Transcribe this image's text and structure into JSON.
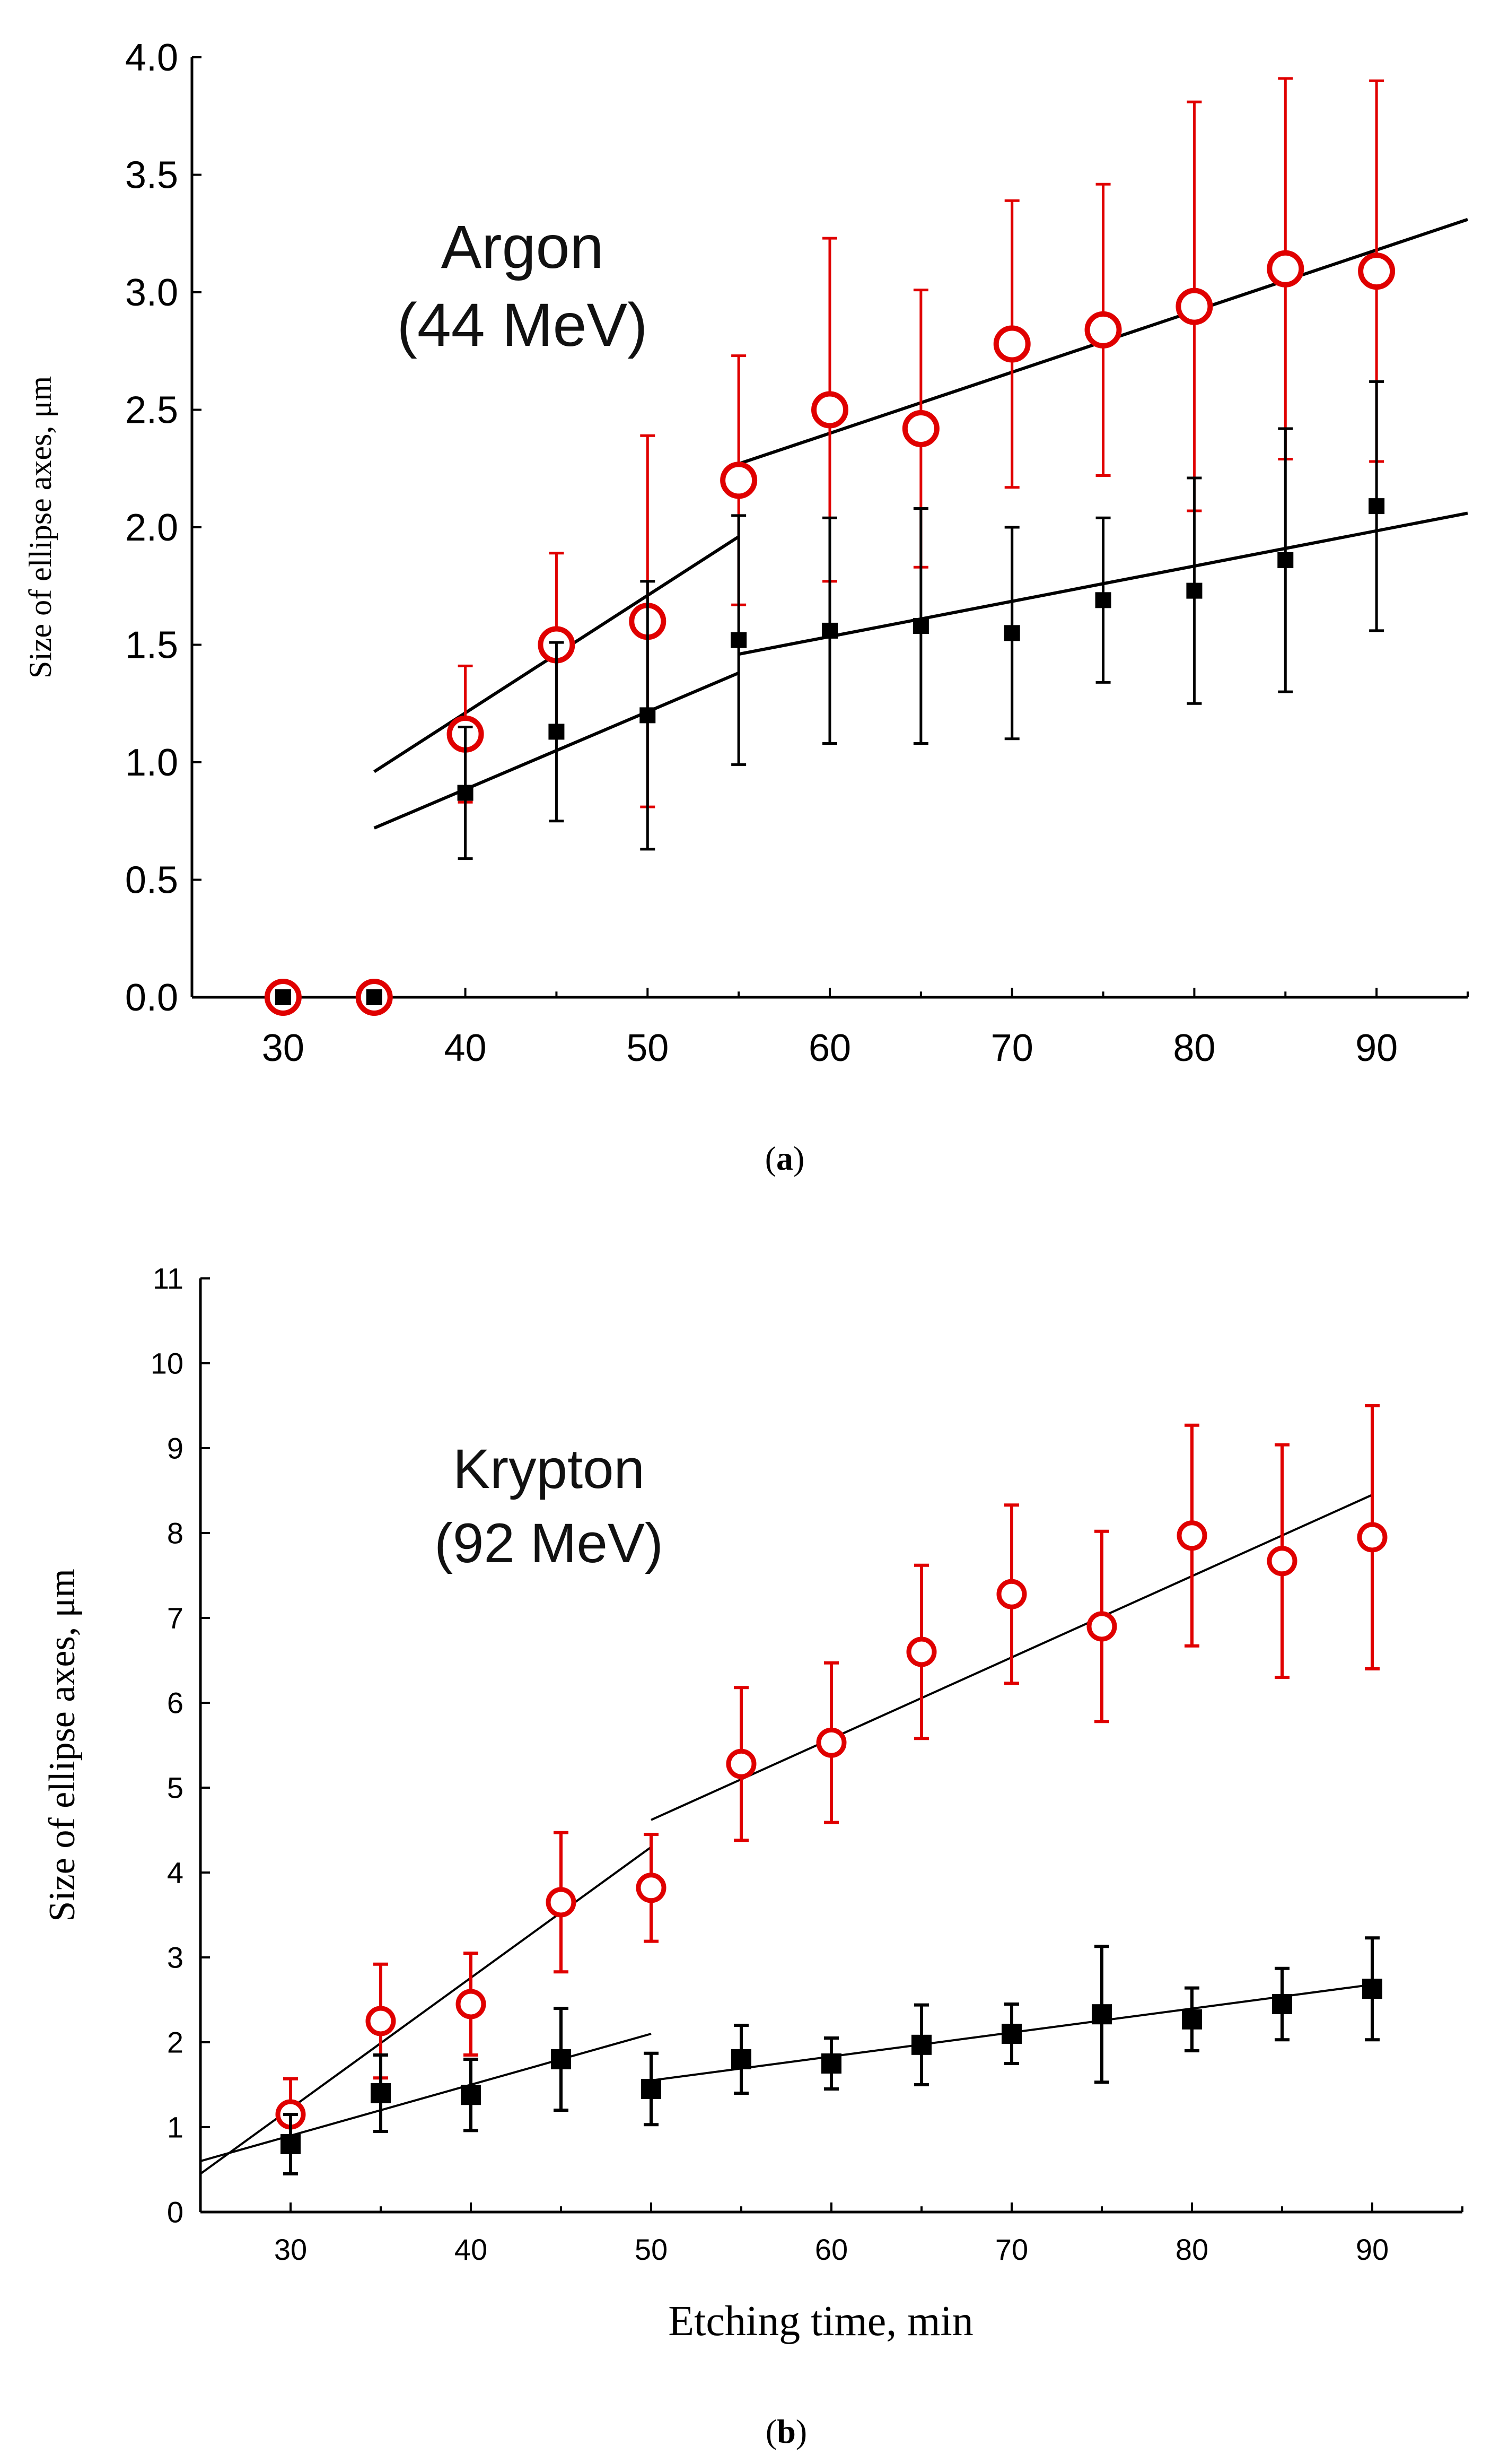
{
  "chart_data": [
    {
      "panel_label": "(a)",
      "panel_label_letter": "a",
      "type": "scatter",
      "title": "",
      "annotation": [
        "Argon",
        "(44 MeV)"
      ],
      "xlabel": "",
      "ylabel": "Size of ellipse axes, μm",
      "xlim": [
        25,
        95
      ],
      "ylim": [
        0,
        4.0
      ],
      "xticks": [
        "30",
        "40",
        "50",
        "60",
        "70",
        "80",
        "90"
      ],
      "yticks": [
        "0.0",
        "0.5",
        "1.0",
        "1.5",
        "2.0",
        "2.5",
        "3.0",
        "3.5",
        "4.0"
      ],
      "legend": "none",
      "grid": false,
      "series": [
        {
          "marker": "open-circle",
          "color": "#e00000",
          "x": [
            30,
            35,
            40,
            45,
            50,
            55,
            60,
            65,
            70,
            75,
            80,
            85,
            90
          ],
          "y": [
            0.0,
            0.0,
            1.12,
            1.5,
            1.6,
            2.2,
            2.5,
            2.42,
            2.78,
            2.84,
            2.94,
            3.1,
            3.09
          ],
          "err": [
            null,
            null,
            0.29,
            0.39,
            0.79,
            0.53,
            0.73,
            0.59,
            0.61,
            0.62,
            0.87,
            0.81,
            0.81
          ]
        },
        {
          "marker": "filled-square",
          "color": "#000000",
          "x": [
            30,
            35,
            40,
            45,
            50,
            55,
            60,
            65,
            70,
            75,
            80,
            85,
            90
          ],
          "y": [
            0.0,
            0.0,
            0.87,
            1.13,
            1.2,
            1.52,
            1.56,
            1.58,
            1.55,
            1.69,
            1.73,
            1.86,
            2.09
          ],
          "err": [
            null,
            null,
            0.28,
            0.38,
            0.57,
            0.53,
            0.48,
            0.5,
            0.45,
            0.35,
            0.48,
            0.56,
            0.53
          ]
        }
      ],
      "fit_lines": [
        {
          "color": "#000000",
          "x": [
            35,
            55
          ],
          "y": [
            0.96,
            1.96
          ]
        },
        {
          "color": "#000000",
          "x": [
            55,
            95
          ],
          "y": [
            2.27,
            3.31
          ]
        },
        {
          "color": "#000000",
          "x": [
            35,
            55
          ],
          "y": [
            0.72,
            1.38
          ]
        },
        {
          "color": "#000000",
          "x": [
            55,
            95
          ],
          "y": [
            1.46,
            2.06
          ]
        }
      ]
    },
    {
      "panel_label": "(b)",
      "panel_label_letter": "b",
      "type": "scatter",
      "title": "",
      "annotation": [
        "Krypton",
        "(92 MeV)"
      ],
      "xlabel": "Etching time, min",
      "ylabel": "Size of ellipse axes, μm",
      "xlim": [
        25,
        95
      ],
      "ylim": [
        0,
        11
      ],
      "xticks": [
        "30",
        "40",
        "50",
        "60",
        "70",
        "80",
        "90"
      ],
      "yticks": [
        "0",
        "1",
        "2",
        "3",
        "4",
        "5",
        "6",
        "7",
        "8",
        "9",
        "10",
        "11"
      ],
      "legend": "none",
      "grid": false,
      "series": [
        {
          "marker": "open-circle",
          "color": "#e00000",
          "x": [
            30,
            35,
            40,
            45,
            50,
            55,
            60,
            65,
            70,
            75,
            80,
            85,
            90
          ],
          "y": [
            1.15,
            2.25,
            2.45,
            3.65,
            3.82,
            5.28,
            5.53,
            6.6,
            7.28,
            6.9,
            7.97,
            7.67,
            7.95
          ],
          "err": [
            0.42,
            0.67,
            0.6,
            0.82,
            0.63,
            0.9,
            0.94,
            1.02,
            1.05,
            1.12,
            1.3,
            1.37,
            1.55
          ]
        },
        {
          "marker": "filled-square",
          "color": "#000000",
          "x": [
            30,
            35,
            40,
            45,
            50,
            55,
            60,
            65,
            70,
            75,
            80,
            85,
            90
          ],
          "y": [
            0.8,
            1.4,
            1.38,
            1.8,
            1.45,
            1.8,
            1.75,
            1.97,
            2.1,
            2.33,
            2.27,
            2.45,
            2.63
          ],
          "err": [
            0.35,
            0.45,
            0.42,
            0.6,
            0.42,
            0.4,
            0.3,
            0.47,
            0.35,
            0.8,
            0.37,
            0.42,
            0.6
          ]
        }
      ],
      "fit_lines": [
        {
          "color": "#000000",
          "x": [
            25,
            50
          ],
          "y": [
            0.45,
            4.3
          ]
        },
        {
          "color": "#000000",
          "x": [
            50,
            90
          ],
          "y": [
            4.62,
            8.45
          ]
        },
        {
          "color": "#000000",
          "x": [
            25,
            50
          ],
          "y": [
            0.6,
            2.1
          ]
        },
        {
          "color": "#000000",
          "x": [
            50,
            90
          ],
          "y": [
            1.55,
            2.68
          ]
        }
      ]
    }
  ]
}
